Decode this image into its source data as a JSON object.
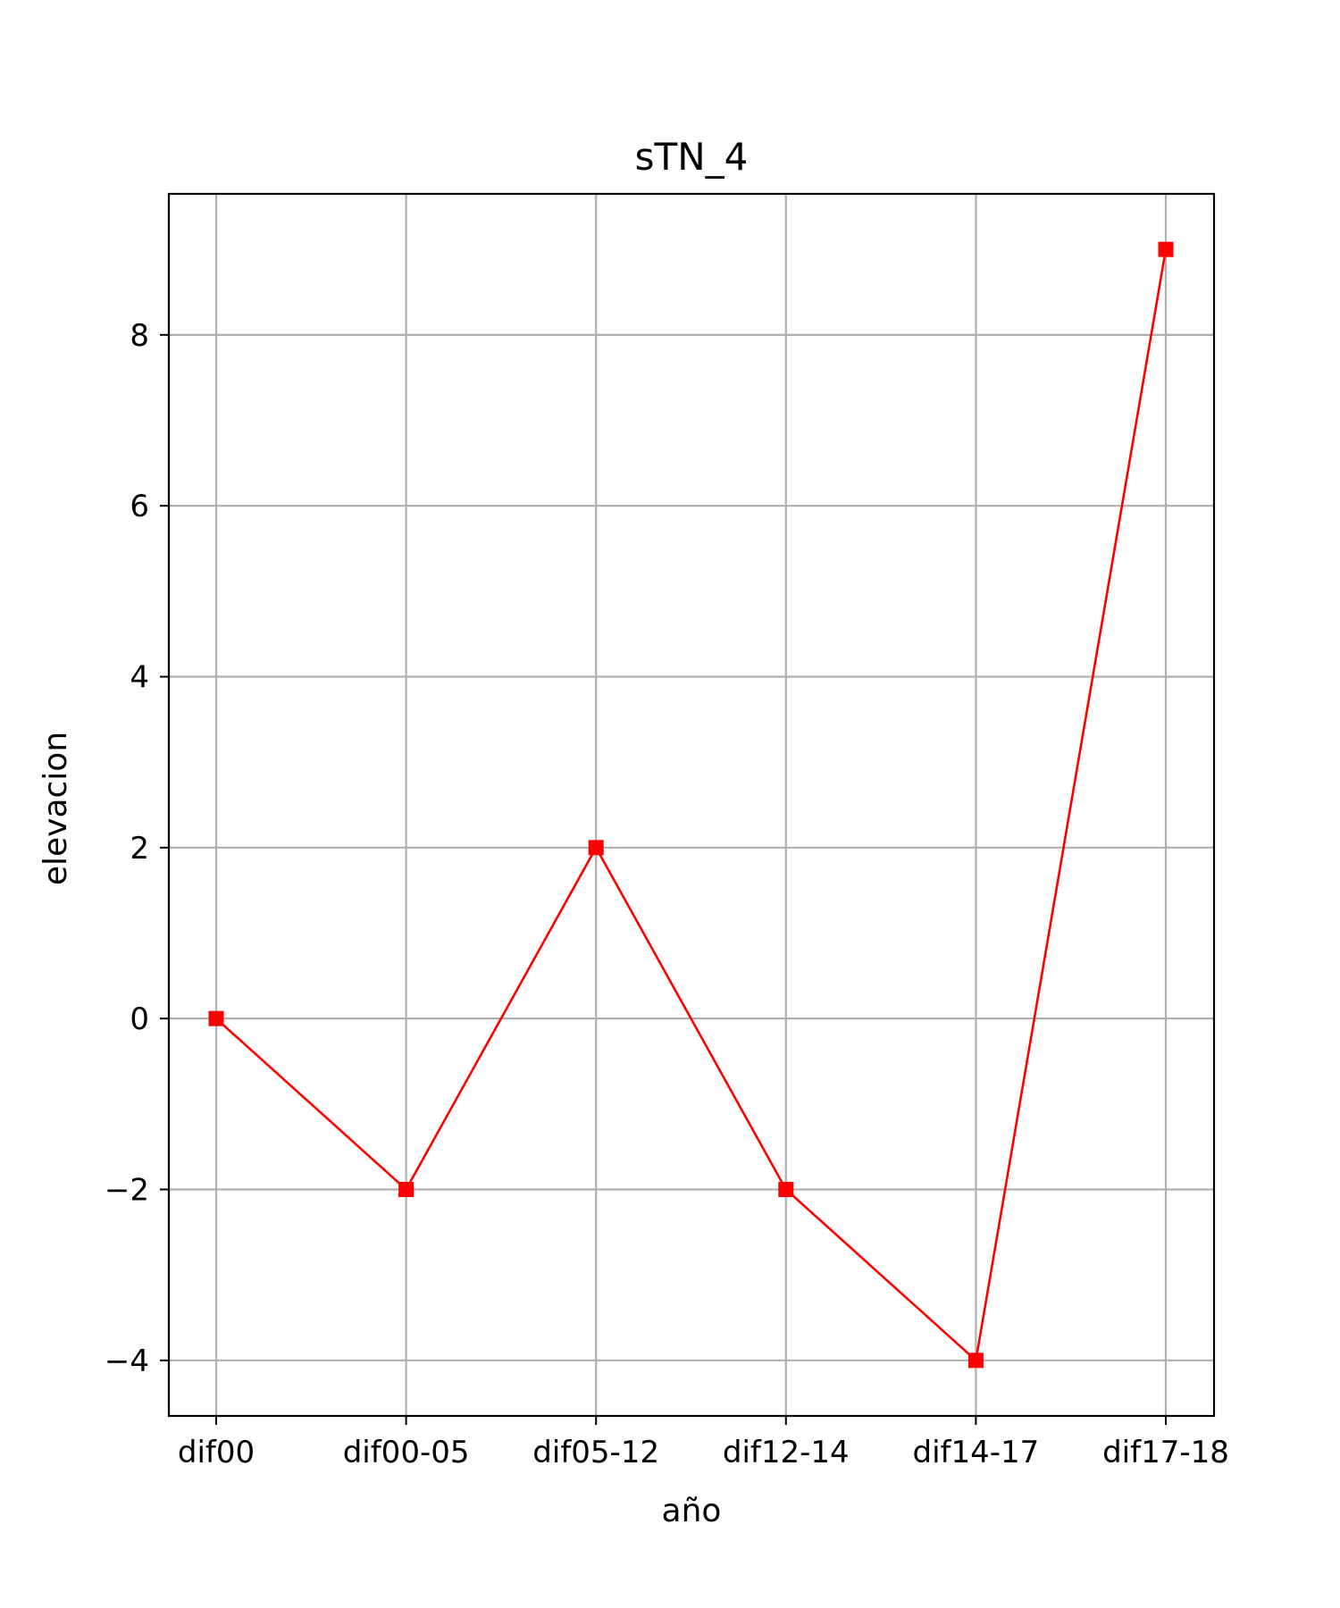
{
  "chart_data": {
    "type": "line",
    "title": "sTN_4",
    "xlabel": "año",
    "ylabel": "elevacion",
    "categories": [
      "dif00",
      "dif00-05",
      "dif05-12",
      "dif12-14",
      "dif14-17",
      "dif17-18"
    ],
    "series": [
      {
        "values": [
          0,
          -2,
          2,
          -2,
          -4,
          9
        ],
        "color": "#ff0000",
        "marker": "square"
      }
    ],
    "yticks": [
      -4,
      -2,
      0,
      2,
      4,
      6,
      8
    ],
    "ytick_labels": [
      "−4",
      "−2",
      "0",
      "2",
      "4",
      "6",
      "8"
    ],
    "ylim": [
      -4.65,
      9.65
    ],
    "grid": true,
    "legend": "none"
  }
}
